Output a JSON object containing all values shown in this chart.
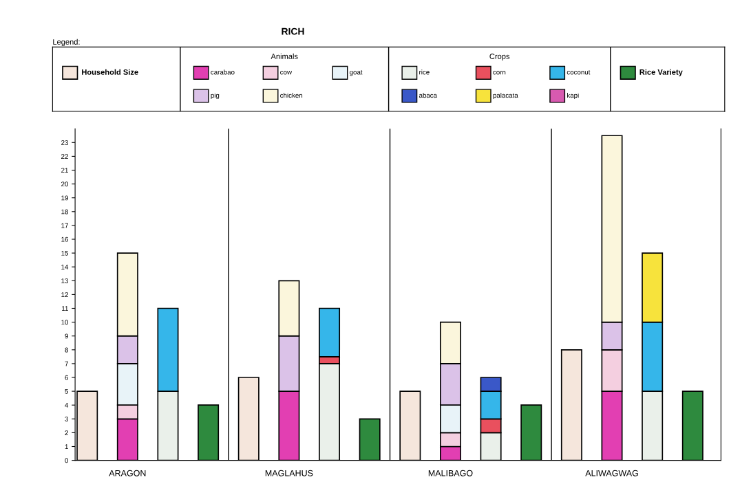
{
  "chart_data": {
    "type": "bar",
    "title": "RICH",
    "legend_title": "Legend:",
    "legend": "top",
    "stacked": true,
    "annotations": [
      "Animals",
      "Crops"
    ],
    "categories": [
      null,
      "ARAGON",
      null,
      null,
      null,
      "MAGLAHUS",
      null,
      null,
      null,
      "MALIBAGO",
      null,
      null,
      null,
      "ALIWAGWAG",
      null,
      null
    ],
    "ylim": [
      0,
      24
    ],
    "yticks": [
      0,
      1,
      2,
      3,
      4,
      5,
      6,
      7,
      8,
      9,
      10,
      11,
      12,
      13,
      14,
      15,
      16,
      17,
      18,
      19,
      20,
      21,
      22,
      23
    ],
    "series": [
      {
        "name": "Household Size",
        "color": "#f5e6dc",
        "values": [
          5,
          null,
          null,
          null,
          6,
          null,
          null,
          null,
          5,
          null,
          null,
          null,
          8,
          null,
          null,
          null
        ]
      },
      {
        "name": "carabao",
        "color": "#e23fb2",
        "values": [
          null,
          3,
          null,
          null,
          null,
          5,
          null,
          null,
          null,
          1,
          null,
          null,
          null,
          5,
          null,
          null
        ]
      },
      {
        "name": "cow",
        "color": "#f4cfe0",
        "values": [
          null,
          1,
          null,
          null,
          null,
          null,
          null,
          null,
          null,
          1,
          null,
          null,
          null,
          3,
          null,
          null
        ]
      },
      {
        "name": "goat",
        "color": "#e8f3f8",
        "values": [
          null,
          3,
          null,
          null,
          null,
          null,
          null,
          null,
          null,
          2,
          null,
          null,
          null,
          null,
          null,
          null
        ]
      },
      {
        "name": "pig",
        "color": "#dbc2e8",
        "values": [
          null,
          2,
          null,
          null,
          null,
          4,
          null,
          null,
          null,
          3,
          null,
          null,
          null,
          2,
          null,
          null
        ]
      },
      {
        "name": "chicken",
        "color": "#fbf6dc",
        "values": [
          null,
          6,
          null,
          null,
          null,
          4,
          null,
          null,
          null,
          3,
          null,
          null,
          null,
          13.5,
          null,
          null
        ]
      },
      {
        "name": "rice",
        "color": "#eaf0ea",
        "values": [
          null,
          null,
          5,
          null,
          null,
          null,
          7,
          null,
          null,
          null,
          2,
          null,
          null,
          null,
          5,
          null
        ]
      },
      {
        "name": "corn",
        "color": "#e9505e",
        "values": [
          null,
          null,
          null,
          null,
          null,
          null,
          0.5,
          null,
          null,
          null,
          1,
          null,
          null,
          null,
          null,
          null
        ]
      },
      {
        "name": "coconut",
        "color": "#35b6ea",
        "values": [
          null,
          null,
          6,
          null,
          null,
          null,
          3.5,
          null,
          null,
          null,
          2,
          null,
          null,
          null,
          5,
          null
        ]
      },
      {
        "name": "abaca",
        "color": "#3a58c8",
        "values": [
          null,
          null,
          null,
          null,
          null,
          null,
          null,
          null,
          null,
          null,
          1,
          null,
          null,
          null,
          null,
          null
        ]
      },
      {
        "name": "palacata",
        "color": "#f7e33c",
        "values": [
          null,
          null,
          null,
          null,
          null,
          null,
          null,
          null,
          null,
          null,
          null,
          null,
          null,
          null,
          5,
          null
        ]
      },
      {
        "name": "kapi",
        "color": "#d85ab0",
        "values": [
          null,
          null,
          null,
          null,
          null,
          null,
          null,
          null,
          null,
          null,
          null,
          null,
          null,
          null,
          null,
          null
        ]
      },
      {
        "name": "Rice Variety",
        "color": "#2e8a3e",
        "values": [
          null,
          null,
          null,
          4,
          null,
          null,
          null,
          3,
          null,
          null,
          null,
          4,
          null,
          null,
          null,
          5
        ]
      }
    ]
  }
}
